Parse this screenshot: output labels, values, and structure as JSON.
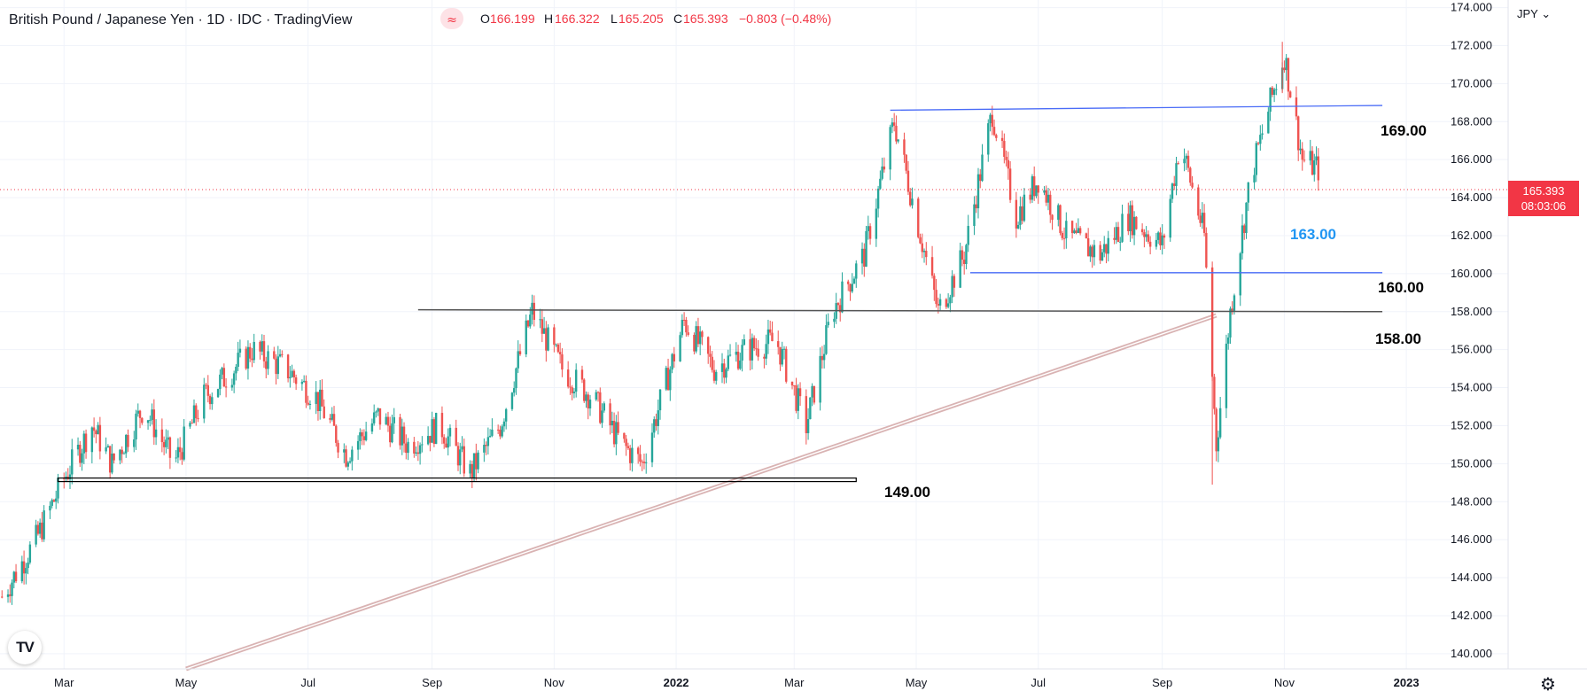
{
  "header": {
    "title": "British Pound / Japanese Yen · 1D · IDC · TradingView",
    "open_label": "O",
    "open": "166.199",
    "high_label": "H",
    "high": "166.322",
    "low_label": "L",
    "low": "165.205",
    "close_label": "C",
    "close": "165.393",
    "change": "−0.803 (−0.48%)"
  },
  "price_axis": {
    "currency": "JPY",
    "ticks": [
      "174.000",
      "172.000",
      "170.000",
      "168.000",
      "166.000",
      "164.000",
      "162.000",
      "160.000",
      "158.000",
      "156.000",
      "154.000",
      "152.000",
      "150.000",
      "148.000",
      "146.000",
      "144.000",
      "142.000",
      "140.000"
    ],
    "last_price": "165.393",
    "countdown": "08:03:06"
  },
  "time_axis": {
    "labels": [
      "Mar",
      "May",
      "Jul",
      "Sep",
      "Nov",
      "2022",
      "Mar",
      "May",
      "Jul",
      "Sep",
      "Nov",
      "2023"
    ]
  },
  "annotations": {
    "level_169": "169.00",
    "level_163": "163.00",
    "level_160": "160.00",
    "level_158": "158.00",
    "level_149": "149.00"
  },
  "colors": {
    "up": "#26a69a",
    "down": "#ef5350",
    "blue_line": "#4a6cf7",
    "label_blue": "#2196f3",
    "trend": "#d9b3b3",
    "price_tag": "#f23645",
    "grid": "#f0f3fa"
  },
  "chart_data": {
    "type": "candlestick",
    "title": "British Pound / Japanese Yen · 1D · IDC · TradingView",
    "y_range": [
      139.2,
      174.4
    ],
    "x_range": [
      "2021-01-28",
      "2023-02-20"
    ],
    "series": [
      {
        "name": "GBPJPY",
        "approx_close_path": [
          [
            "2021-01-29",
            143.0
          ],
          [
            "2021-02-15",
            146.0
          ],
          [
            "2021-02-28",
            149.0
          ],
          [
            "2021-03-15",
            152.0
          ],
          [
            "2021-03-25",
            150.0
          ],
          [
            "2021-04-10",
            153.0
          ],
          [
            "2021-04-25",
            150.0
          ],
          [
            "2021-05-10",
            153.5
          ],
          [
            "2021-05-25",
            155.0
          ],
          [
            "2021-06-03",
            156.0
          ],
          [
            "2021-06-20",
            155.0
          ],
          [
            "2021-07-05",
            153.5
          ],
          [
            "2021-07-20",
            150.5
          ],
          [
            "2021-08-05",
            152.5
          ],
          [
            "2021-08-20",
            151.0
          ],
          [
            "2021-09-05",
            152.0
          ],
          [
            "2021-09-20",
            149.5
          ],
          [
            "2021-10-05",
            152.0
          ],
          [
            "2021-10-21",
            158.0
          ],
          [
            "2021-11-05",
            155.0
          ],
          [
            "2021-11-20",
            153.5
          ],
          [
            "2021-12-05",
            151.0
          ],
          [
            "2021-12-15",
            150.0
          ],
          [
            "2022-01-05",
            157.5
          ],
          [
            "2022-01-20",
            155.0
          ],
          [
            "2022-02-05",
            156.0
          ],
          [
            "2022-02-20",
            156.5
          ],
          [
            "2022-03-07",
            152.0
          ],
          [
            "2022-03-20",
            158.0
          ],
          [
            "2022-04-05",
            161.0
          ],
          [
            "2022-04-20",
            168.0
          ],
          [
            "2022-05-01",
            163.0
          ],
          [
            "2022-05-12",
            158.0
          ],
          [
            "2022-05-25",
            161.0
          ],
          [
            "2022-06-08",
            168.5
          ],
          [
            "2022-06-20",
            163.0
          ],
          [
            "2022-07-01",
            165.0
          ],
          [
            "2022-07-15",
            162.0
          ],
          [
            "2022-08-01",
            161.0
          ],
          [
            "2022-08-15",
            163.0
          ],
          [
            "2022-09-01",
            161.5
          ],
          [
            "2022-09-10",
            167.0
          ],
          [
            "2022-09-22",
            162.0
          ],
          [
            "2022-09-28",
            151.0
          ],
          [
            "2022-10-05",
            158.0
          ],
          [
            "2022-10-15",
            165.0
          ],
          [
            "2022-10-25",
            169.0
          ],
          [
            "2022-11-01",
            171.5
          ],
          [
            "2022-11-10",
            166.0
          ],
          [
            "2022-11-20",
            165.4
          ]
        ]
      }
    ],
    "levels": [
      169.0,
      163.0,
      160.0,
      158.0,
      149.0
    ],
    "last": 165.393,
    "grid": true
  }
}
